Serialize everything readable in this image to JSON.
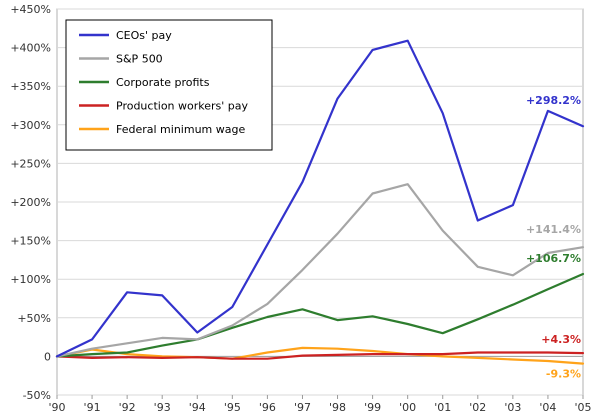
{
  "chart_data": {
    "type": "line",
    "title": "",
    "xlabel": "",
    "ylabel": "",
    "x": [
      "'90",
      "'91",
      "'92",
      "'93",
      "'94",
      "'95",
      "'96",
      "'97",
      "'98",
      "'99",
      "'00",
      "'01",
      "'02",
      "'03",
      "'04",
      "'05"
    ],
    "ylim": [
      -50,
      450
    ],
    "y_ticks": [
      "-50%",
      "0",
      "+50%",
      "+100%",
      "+150%",
      "+200%",
      "+250%",
      "+300%",
      "+350%",
      "+400%",
      "+450%"
    ],
    "grid": "horizontal",
    "legend_position": "top-left",
    "series": [
      {
        "name": "CEOs' pay",
        "color": "#3333cc",
        "values": [
          0,
          22,
          83,
          79,
          31,
          64,
          145,
          226,
          334,
          397,
          409,
          315,
          176,
          196,
          318,
          298.2
        ],
        "end_label": "+298.2%"
      },
      {
        "name": "S&P 500",
        "color": "#a6a6a6",
        "values": [
          0,
          10,
          17,
          24,
          22,
          40,
          68,
          112,
          159,
          211,
          223,
          163,
          116,
          105,
          134,
          141.4
        ],
        "end_label": "+141.4%"
      },
      {
        "name": "Corporate profits",
        "color": "#2e7d2e",
        "values": [
          0,
          3,
          5,
          14,
          22,
          37,
          51,
          61,
          47,
          52,
          42,
          30,
          48,
          67,
          87,
          106.7
        ],
        "end_label": "+106.7%"
      },
      {
        "name": "Production workers' pay",
        "color": "#cc2222",
        "values": [
          0,
          -2,
          -1,
          -2,
          -1,
          -3,
          -3,
          1,
          2,
          3,
          3,
          3,
          5,
          5,
          5,
          4.3
        ],
        "end_label": "+4.3%"
      },
      {
        "name": "Federal minimum wage",
        "color": "#ffa31a",
        "values": [
          0,
          9,
          3,
          0,
          -1,
          -3,
          5,
          11,
          10,
          7,
          3,
          0,
          -2,
          -4,
          -6,
          -9.3
        ],
        "end_label": "-9.3%"
      }
    ]
  }
}
